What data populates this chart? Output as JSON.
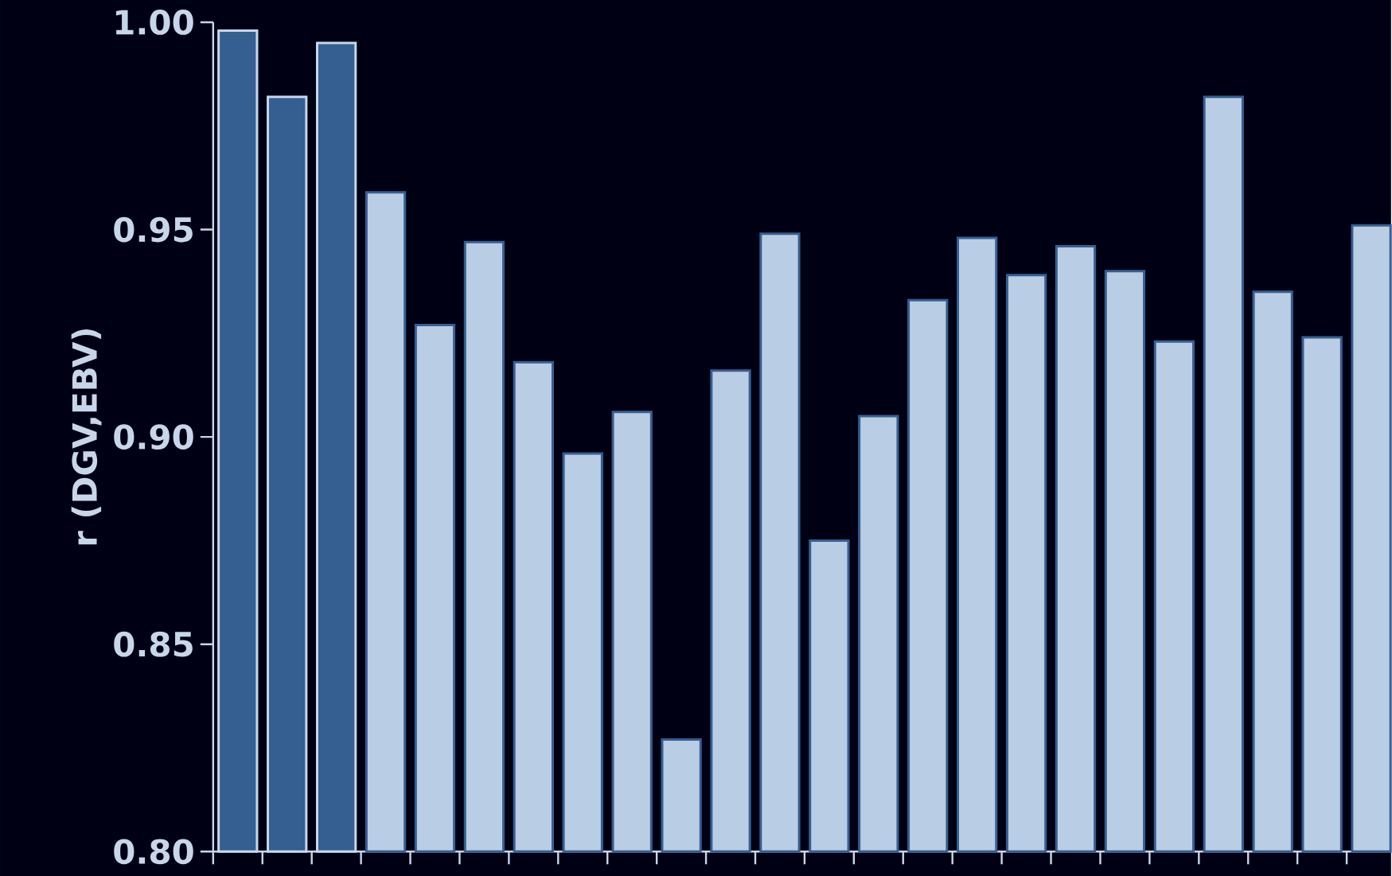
{
  "chart_data": {
    "type": "bar",
    "ylabel": "r (DGV,EBV)",
    "categories": [
      null,
      null,
      null,
      null,
      null,
      null,
      null,
      null,
      null,
      null,
      null,
      null,
      null,
      null,
      null,
      null,
      null,
      null,
      null,
      null,
      null,
      null,
      null,
      null
    ],
    "values": [
      0.998,
      0.982,
      0.995,
      0.959,
      0.927,
      0.947,
      0.918,
      0.896,
      0.906,
      0.827,
      0.916,
      0.949,
      0.875,
      0.905,
      0.933,
      0.948,
      0.939,
      0.946,
      0.94,
      0.923,
      0.982,
      0.935,
      0.924,
      0.951
    ],
    "colors": [
      "#355f91",
      "#355f91",
      "#355f91",
      "#b9cde4",
      "#b9cde4",
      "#b9cde4",
      "#b9cde4",
      "#b9cde4",
      "#b9cde4",
      "#b9cde4",
      "#b9cde4",
      "#b9cde4",
      "#b9cde4",
      "#b9cde4",
      "#b9cde4",
      "#b9cde4",
      "#b9cde4",
      "#b9cde4",
      "#b9cde4",
      "#b9cde4",
      "#b9cde4",
      "#b9cde4",
      "#b9cde4",
      "#b9cde4"
    ],
    "ylim": [
      0.8,
      1.0
    ],
    "yticks": [
      {
        "value": 0.8,
        "label": "0.80"
      },
      {
        "value": 0.85,
        "label": "0.85"
      },
      {
        "value": 0.9,
        "label": "0.90"
      },
      {
        "value": 0.95,
        "label": "0.95"
      },
      {
        "value": 1.0,
        "label": "1.00"
      }
    ],
    "tick_labels": "y"
  }
}
